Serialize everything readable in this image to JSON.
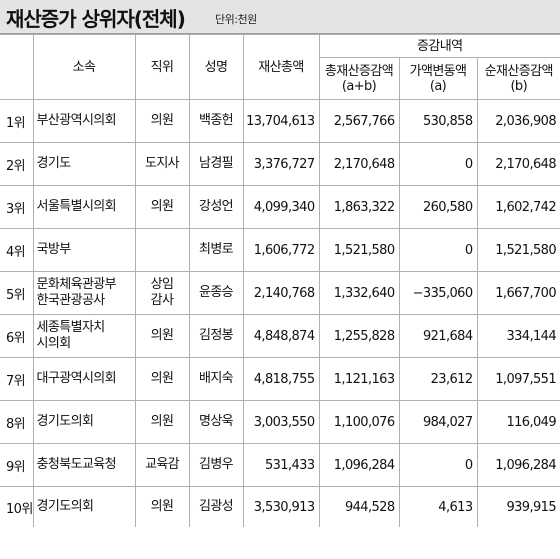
{
  "header": {
    "title": "재산증가 상위자(전체)",
    "unit": "단위:천원"
  },
  "columns": {
    "org": "소속",
    "position": "직위",
    "name": "성명",
    "total": "재산총액",
    "change_group": "증감내역",
    "total_change": "총재산증감액",
    "total_change_sub": "(a+b)",
    "price_change": "가액변동액",
    "price_change_sub": "(a)",
    "net_change": "순재산증감액",
    "net_change_sub": "(b)"
  },
  "rows": [
    {
      "rank": "1위",
      "org1": "부산광역시의회",
      "org2": "",
      "pos1": "의원",
      "pos2": "",
      "name": "백종헌",
      "total": "13,704,613",
      "total_change": "2,567,766",
      "price_change": "530,858",
      "net_change": "2,036,908"
    },
    {
      "rank": "2위",
      "org1": "경기도",
      "org2": "",
      "pos1": "도지사",
      "pos2": "",
      "name": "남경필",
      "total": "3,376,727",
      "total_change": "2,170,648",
      "price_change": "0",
      "net_change": "2,170,648"
    },
    {
      "rank": "3위",
      "org1": "서울특별시의회",
      "org2": "",
      "pos1": "의원",
      "pos2": "",
      "name": "강성언",
      "total": "4,099,340",
      "total_change": "1,863,322",
      "price_change": "260,580",
      "net_change": "1,602,742"
    },
    {
      "rank": "4위",
      "org1": "국방부",
      "org2": "",
      "pos1": "",
      "pos2": "",
      "name": "최병로",
      "total": "1,606,772",
      "total_change": "1,521,580",
      "price_change": "0",
      "net_change": "1,521,580"
    },
    {
      "rank": "5위",
      "org1": "문화체육관광부",
      "org2": "한국관광공사",
      "pos1": "상임",
      "pos2": "감사",
      "name": "윤종승",
      "total": "2,140,768",
      "total_change": "1,332,640",
      "price_change": "−335,060",
      "net_change": "1,667,700"
    },
    {
      "rank": "6위",
      "org1": "세종특별자치",
      "org2": "시의회",
      "pos1": "의원",
      "pos2": "",
      "name": "김정봉",
      "total": "4,848,874",
      "total_change": "1,255,828",
      "price_change": "921,684",
      "net_change": "334,144"
    },
    {
      "rank": "7위",
      "org1": "대구광역시의회",
      "org2": "",
      "pos1": "의원",
      "pos2": "",
      "name": "배지숙",
      "total": "4,818,755",
      "total_change": "1,121,163",
      "price_change": "23,612",
      "net_change": "1,097,551"
    },
    {
      "rank": "8위",
      "org1": "경기도의회",
      "org2": "",
      "pos1": "의원",
      "pos2": "",
      "name": "명상욱",
      "total": "3,003,550",
      "total_change": "1,100,076",
      "price_change": "984,027",
      "net_change": "116,049"
    },
    {
      "rank": "9위",
      "org1": "충청북도교육청",
      "org2": "",
      "pos1": "교육감",
      "pos2": "",
      "name": "김병우",
      "total": "531,433",
      "total_change": "1,096,284",
      "price_change": "0",
      "net_change": "1,096,284"
    },
    {
      "rank": "10위",
      "org1": "경기도의회",
      "org2": "",
      "pos1": "의원",
      "pos2": "",
      "name": "김광성",
      "total": "3,530,913",
      "total_change": "944,528",
      "price_change": "4,613",
      "net_change": "939,915"
    }
  ]
}
